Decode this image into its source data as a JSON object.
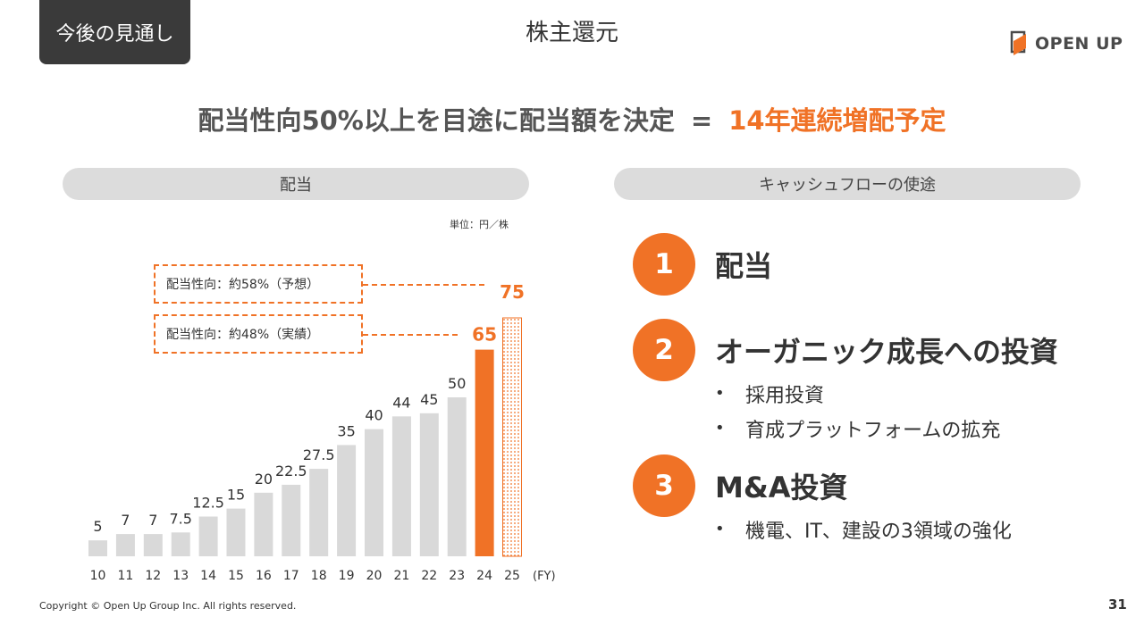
{
  "header": {
    "section_tag": "今後の見通し",
    "title": "株主還元",
    "logo_text": "OPEN UP"
  },
  "headline": {
    "main": "配当性向50%以上を目途に配当額を決定",
    "equals": "=",
    "accent": "14年連続増配予定"
  },
  "left_panel": {
    "pill_label": "配当",
    "unit": "単位：円／株",
    "payout_forecast": "配当性向：約58%（予想）",
    "payout_actual": "配当性向：約48%（実績）",
    "fy_label": "(FY)"
  },
  "right_panel": {
    "pill_label": "キャッシュフローの使途",
    "items": [
      {
        "number": "1",
        "title": "配当",
        "bullets": []
      },
      {
        "number": "2",
        "title": "オーガニック成長への投資",
        "bullets": [
          "採用投資",
          "育成プラットフォームの拡充"
        ]
      },
      {
        "number": "3",
        "title": "M&A投資",
        "bullets": [
          "機電、IT、建設の3領域の強化"
        ]
      }
    ],
    "bullet_symbol": "•"
  },
  "footer": {
    "copyright": "Copyright © Open Up Group Inc. All rights reserved.",
    "page_number": "31"
  },
  "colors": {
    "accent": "#f07226",
    "bar_gray": "#d9d9d9",
    "dark": "#3a3a3a"
  },
  "chart_data": {
    "type": "bar",
    "categories": [
      "10",
      "11",
      "12",
      "13",
      "14",
      "15",
      "16",
      "17",
      "18",
      "19",
      "20",
      "21",
      "22",
      "23",
      "24",
      "25"
    ],
    "values": [
      5,
      7,
      7,
      7.5,
      12.5,
      15,
      20,
      22.5,
      27.5,
      35,
      40,
      44,
      45,
      50,
      65,
      75
    ],
    "labels": [
      "5",
      "7",
      "7",
      "7.5",
      "12.5",
      "15",
      "20",
      "22.5",
      "27.5",
      "35",
      "40",
      "44",
      "45",
      "50",
      "65",
      "75"
    ],
    "highlight": {
      "index": 14,
      "style": "solid-orange"
    },
    "forecast": {
      "index": 15,
      "style": "dotted-outline"
    },
    "xlabel": "(FY)",
    "ylabel": "",
    "ylim": [
      0,
      75
    ],
    "grid": false
  }
}
